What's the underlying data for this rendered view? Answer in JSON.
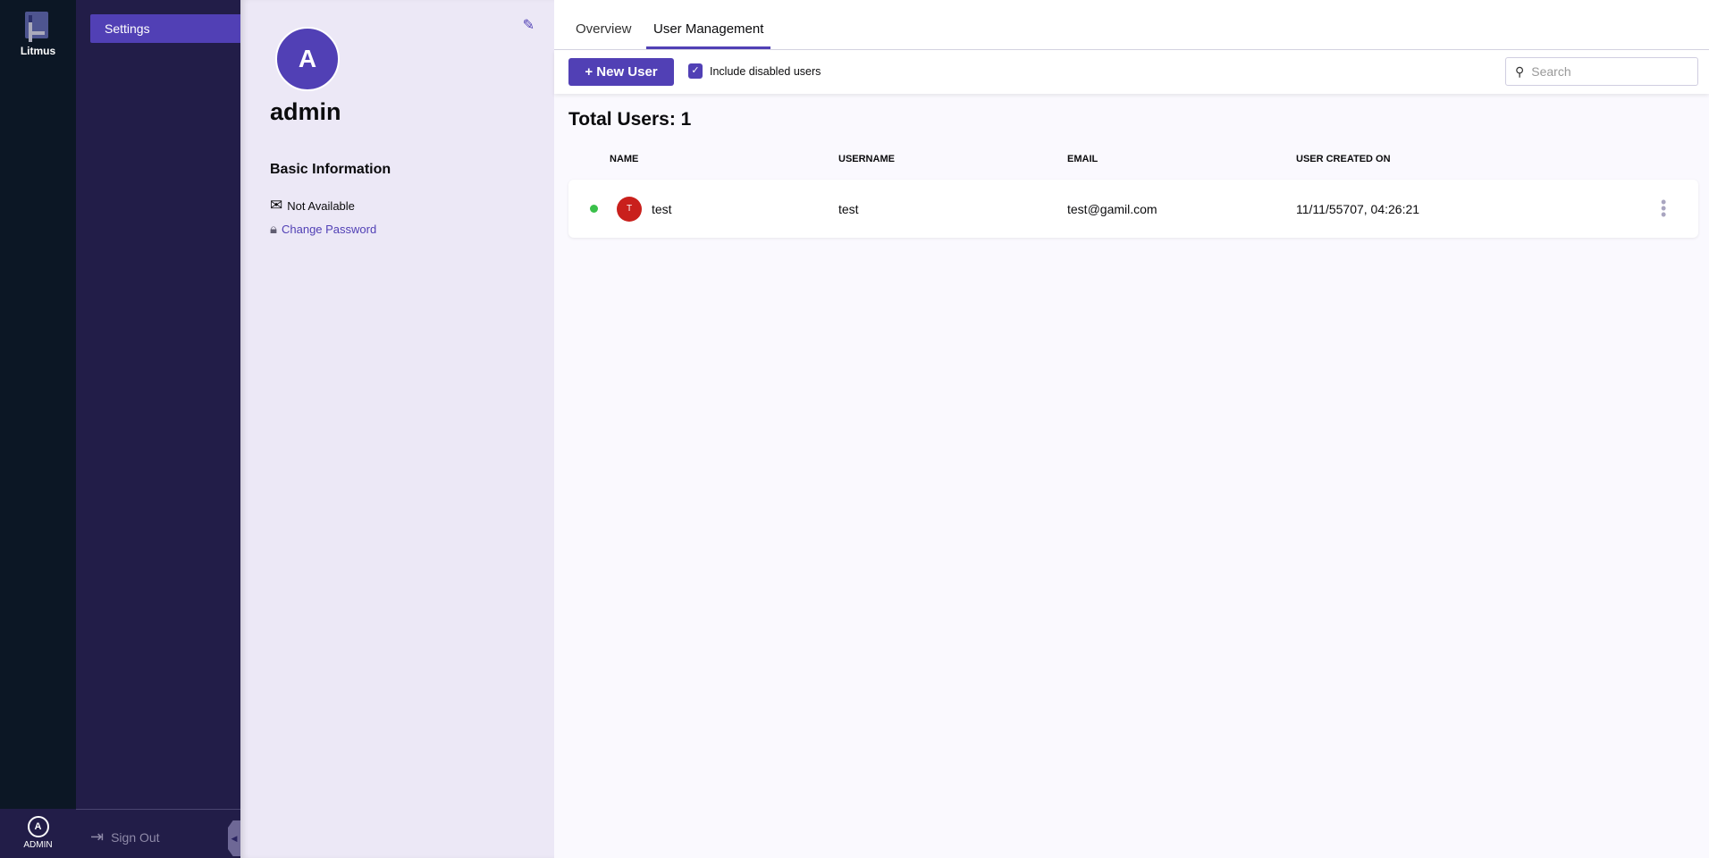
{
  "nav": {
    "logo_label": "Litmus",
    "user_initial": "A",
    "user_label": "ADMIN"
  },
  "sidebar": {
    "items": [
      {
        "label": "Settings"
      }
    ],
    "sign_out": "Sign Out"
  },
  "profile": {
    "initial": "A",
    "name": "admin",
    "section": "Basic Information",
    "email": "Not Available",
    "change_password": "Change Password"
  },
  "tabs": [
    {
      "label": "Overview"
    },
    {
      "label": "User Management",
      "active": true
    }
  ],
  "toolbar": {
    "new_user": "New User",
    "include_disabled": "Include disabled users",
    "include_disabled_checked": true,
    "search_placeholder": "Search"
  },
  "total": "Total Users: 1",
  "table": {
    "headers": [
      "NAME",
      "USERNAME",
      "EMAIL",
      "USER CREATED ON"
    ],
    "rows": [
      {
        "status": "active",
        "initial": "T",
        "name": "test",
        "username": "test",
        "email": "test@gamil.com",
        "created": "11/11/55707, 04:26:21"
      }
    ]
  },
  "colors": {
    "accent": "#5140b5",
    "status_active": "#3ac04a",
    "avatar_user": "#c9201c"
  }
}
